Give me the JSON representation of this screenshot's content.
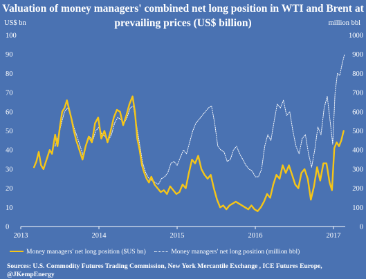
{
  "chart_data": {
    "type": "line",
    "title": "Valuation of money managers' combined net long position in WTI and Brent at prevailing prices (US$ billion)",
    "left_axis_label": "US$ bn",
    "right_axis_label": "million bbl",
    "y_left_ticks": [
      "0",
      "10",
      "20",
      "30",
      "40",
      "50",
      "60",
      "70",
      "80",
      "90",
      "100"
    ],
    "y_right_ticks": [
      "0",
      "100",
      "200",
      "300",
      "400",
      "500",
      "600",
      "700",
      "800",
      "900",
      "1000"
    ],
    "x_ticks": [
      "2013",
      "2014",
      "2015",
      "2016",
      "2017"
    ],
    "ylim_left": [
      0,
      100
    ],
    "ylim_right": [
      0,
      1000
    ],
    "xlim": [
      2013.0,
      2017.15
    ],
    "grid": false,
    "legend_position": "bottom",
    "series": [
      {
        "name": "Money managers' net long position ($US bn)",
        "axis": "left",
        "color": "#f5c518",
        "points": [
          [
            2013.17,
            31
          ],
          [
            2013.2,
            34
          ],
          [
            2013.23,
            39
          ],
          [
            2013.26,
            32
          ],
          [
            2013.29,
            30
          ],
          [
            2013.33,
            35
          ],
          [
            2013.37,
            40
          ],
          [
            2013.4,
            38
          ],
          [
            2013.44,
            48
          ],
          [
            2013.47,
            42
          ],
          [
            2013.5,
            52
          ],
          [
            2013.53,
            60
          ],
          [
            2013.56,
            62
          ],
          [
            2013.59,
            66
          ],
          [
            2013.62,
            61
          ],
          [
            2013.65,
            56
          ],
          [
            2013.68,
            50
          ],
          [
            2013.71,
            45
          ],
          [
            2013.75,
            40
          ],
          [
            2013.79,
            35
          ],
          [
            2013.83,
            42
          ],
          [
            2013.87,
            47
          ],
          [
            2013.91,
            44
          ],
          [
            2013.95,
            54
          ],
          [
            2013.99,
            57
          ],
          [
            2014.03,
            46
          ],
          [
            2014.07,
            50
          ],
          [
            2014.11,
            44
          ],
          [
            2014.15,
            50
          ],
          [
            2014.19,
            57
          ],
          [
            2014.23,
            61
          ],
          [
            2014.27,
            60
          ],
          [
            2014.31,
            53
          ],
          [
            2014.35,
            58
          ],
          [
            2014.39,
            64
          ],
          [
            2014.43,
            68
          ],
          [
            2014.46,
            60
          ],
          [
            2014.49,
            46
          ],
          [
            2014.52,
            40
          ],
          [
            2014.55,
            32
          ],
          [
            2014.58,
            28
          ],
          [
            2014.61,
            25
          ],
          [
            2014.64,
            23
          ],
          [
            2014.67,
            26
          ],
          [
            2014.71,
            22
          ],
          [
            2014.75,
            20
          ],
          [
            2014.79,
            18
          ],
          [
            2014.83,
            19
          ],
          [
            2014.87,
            17
          ],
          [
            2014.91,
            21
          ],
          [
            2014.95,
            19
          ],
          [
            2014.99,
            17
          ],
          [
            2015.03,
            18
          ],
          [
            2015.07,
            22
          ],
          [
            2015.11,
            20
          ],
          [
            2015.15,
            28
          ],
          [
            2015.19,
            35
          ],
          [
            2015.23,
            33
          ],
          [
            2015.27,
            37
          ],
          [
            2015.31,
            30
          ],
          [
            2015.35,
            27
          ],
          [
            2015.39,
            25
          ],
          [
            2015.43,
            27
          ],
          [
            2015.47,
            20
          ],
          [
            2015.51,
            14
          ],
          [
            2015.55,
            10
          ],
          [
            2015.59,
            11
          ],
          [
            2015.63,
            9
          ],
          [
            2015.67,
            11
          ],
          [
            2015.71,
            12
          ],
          [
            2015.75,
            13
          ],
          [
            2015.79,
            12
          ],
          [
            2015.83,
            11
          ],
          [
            2015.87,
            10
          ],
          [
            2015.91,
            9
          ],
          [
            2015.95,
            11
          ],
          [
            2015.99,
            9
          ],
          [
            2016.03,
            8
          ],
          [
            2016.07,
            10
          ],
          [
            2016.11,
            13
          ],
          [
            2016.15,
            17
          ],
          [
            2016.19,
            15
          ],
          [
            2016.23,
            22
          ],
          [
            2016.27,
            27
          ],
          [
            2016.31,
            25
          ],
          [
            2016.35,
            32
          ],
          [
            2016.39,
            28
          ],
          [
            2016.43,
            32
          ],
          [
            2016.47,
            27
          ],
          [
            2016.51,
            22
          ],
          [
            2016.55,
            20
          ],
          [
            2016.59,
            28
          ],
          [
            2016.63,
            30
          ],
          [
            2016.67,
            25
          ],
          [
            2016.71,
            14
          ],
          [
            2016.75,
            21
          ],
          [
            2016.79,
            31
          ],
          [
            2016.83,
            24
          ],
          [
            2016.87,
            33
          ],
          [
            2016.91,
            33
          ],
          [
            2016.95,
            23
          ],
          [
            2016.98,
            19
          ],
          [
            2017.01,
            41
          ],
          [
            2017.04,
            44
          ],
          [
            2017.07,
            42
          ],
          [
            2017.1,
            45
          ],
          [
            2017.13,
            50
          ]
        ]
      },
      {
        "name": "Money managers' net long position (million bbl)",
        "axis": "right",
        "color": "#ffffff",
        "style": "dotted",
        "points": [
          [
            2013.44,
            420
          ],
          [
            2013.48,
            470
          ],
          [
            2013.52,
            540
          ],
          [
            2013.56,
            600
          ],
          [
            2013.6,
            620
          ],
          [
            2013.64,
            580
          ],
          [
            2013.68,
            520
          ],
          [
            2013.72,
            470
          ],
          [
            2013.76,
            420
          ],
          [
            2013.8,
            370
          ],
          [
            2013.84,
            430
          ],
          [
            2013.88,
            470
          ],
          [
            2013.92,
            450
          ],
          [
            2013.96,
            500
          ],
          [
            2014.0,
            520
          ],
          [
            2014.04,
            480
          ],
          [
            2014.08,
            470
          ],
          [
            2014.12,
            450
          ],
          [
            2014.16,
            480
          ],
          [
            2014.2,
            540
          ],
          [
            2014.24,
            570
          ],
          [
            2014.28,
            560
          ],
          [
            2014.32,
            540
          ],
          [
            2014.36,
            570
          ],
          [
            2014.4,
            620
          ],
          [
            2014.44,
            630
          ],
          [
            2014.48,
            530
          ],
          [
            2014.52,
            430
          ],
          [
            2014.56,
            330
          ],
          [
            2014.6,
            280
          ],
          [
            2014.64,
            250
          ],
          [
            2014.68,
            240
          ],
          [
            2014.72,
            230
          ],
          [
            2014.76,
            220
          ],
          [
            2014.8,
            250
          ],
          [
            2014.84,
            260
          ],
          [
            2014.88,
            280
          ],
          [
            2014.92,
            330
          ],
          [
            2014.96,
            340
          ],
          [
            2015.0,
            320
          ],
          [
            2015.04,
            360
          ],
          [
            2015.08,
            400
          ],
          [
            2015.12,
            380
          ],
          [
            2015.16,
            440
          ],
          [
            2015.2,
            500
          ],
          [
            2015.24,
            540
          ],
          [
            2015.28,
            560
          ],
          [
            2015.32,
            580
          ],
          [
            2015.36,
            600
          ],
          [
            2015.4,
            620
          ],
          [
            2015.44,
            630
          ],
          [
            2015.48,
            540
          ],
          [
            2015.52,
            420
          ],
          [
            2015.56,
            400
          ],
          [
            2015.6,
            390
          ],
          [
            2015.64,
            340
          ],
          [
            2015.68,
            350
          ],
          [
            2015.72,
            400
          ],
          [
            2015.76,
            420
          ],
          [
            2015.8,
            380
          ],
          [
            2015.84,
            350
          ],
          [
            2015.88,
            320
          ],
          [
            2015.92,
            300
          ],
          [
            2015.96,
            290
          ],
          [
            2016.0,
            260
          ],
          [
            2016.04,
            260
          ],
          [
            2016.08,
            300
          ],
          [
            2016.12,
            420
          ],
          [
            2016.16,
            480
          ],
          [
            2016.2,
            450
          ],
          [
            2016.24,
            550
          ],
          [
            2016.28,
            640
          ],
          [
            2016.32,
            620
          ],
          [
            2016.36,
            660
          ],
          [
            2016.4,
            580
          ],
          [
            2016.44,
            600
          ],
          [
            2016.48,
            500
          ],
          [
            2016.52,
            420
          ],
          [
            2016.56,
            380
          ],
          [
            2016.6,
            460
          ],
          [
            2016.64,
            480
          ],
          [
            2016.68,
            380
          ],
          [
            2016.72,
            310
          ],
          [
            2016.76,
            400
          ],
          [
            2016.8,
            520
          ],
          [
            2016.84,
            480
          ],
          [
            2016.88,
            620
          ],
          [
            2016.92,
            680
          ],
          [
            2016.96,
            540
          ],
          [
            2016.99,
            430
          ],
          [
            2017.02,
            700
          ],
          [
            2017.05,
            800
          ],
          [
            2017.08,
            790
          ],
          [
            2017.11,
            850
          ],
          [
            2017.14,
            900
          ]
        ]
      }
    ]
  },
  "sources": "Sources: U.S. Commodity Futures Trading Commission, New York Mercantile Exchange , ICE Futures Europe, @JKempEnergy"
}
